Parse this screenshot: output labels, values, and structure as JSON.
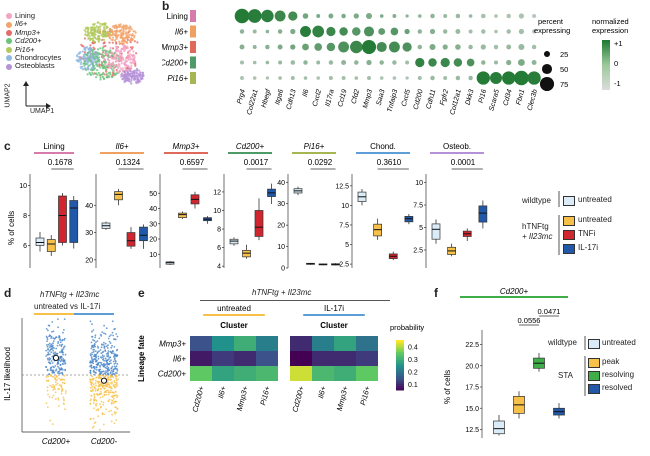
{
  "figure": {
    "panel_labels": [
      "b",
      "c",
      "d",
      "e",
      "f"
    ]
  },
  "panel_a": {
    "legend": [
      "Lining",
      "Il6+",
      "Mmp3+",
      "Cd200+",
      "Pi16+",
      "Chondrocytes",
      "Osteoblasts"
    ],
    "colors": [
      "#f4a3c3",
      "#f2a56b",
      "#e56a6a",
      "#6ac47c",
      "#b2c95d",
      "#8fb9e0",
      "#b592d8"
    ],
    "x_axis": "UMAP1",
    "y_axis": "UMAP2"
  },
  "chart_data": [
    {
      "type": "dotplot",
      "panel": "b",
      "rows": [
        "Lining",
        "Il6+",
        "Mmp3+",
        "Cd200+",
        "Pi16+"
      ],
      "row_colors": [
        "#d67bab",
        "#f0a061",
        "#e06a5a",
        "#4e9b68",
        "#a7b653"
      ],
      "genes": [
        "Prg4",
        "Col22a1",
        "Hbegf",
        "Itga6",
        "Cdh13",
        "Il6",
        "Cxcl2",
        "Il17ra",
        "Ccl19",
        "Cfd2",
        "Mmp3",
        "Saa3",
        "Tnfaip3",
        "Cxcl5",
        "Cd200",
        "Cdh11",
        "Fgfr2",
        "Col12a1",
        "Dkk3",
        "Pi16",
        "Scara5",
        "Cd34",
        "Fbn1",
        "Clec3b"
      ],
      "size_legend_title": "percent expressing",
      "size_legend": [
        25,
        50,
        75
      ],
      "color_legend_title": "normalized expression",
      "color_legend": [
        "+1",
        "0",
        "-1"
      ],
      "dots": [
        [
          [
            78,
            0.95
          ],
          [
            72,
            0.9
          ],
          [
            65,
            0.85
          ],
          [
            55,
            0.7
          ],
          [
            45,
            0.6
          ],
          [
            22,
            0.1
          ],
          [
            12,
            0
          ],
          [
            18,
            0
          ],
          [
            15,
            0
          ],
          [
            20,
            0
          ],
          [
            25,
            0
          ],
          [
            10,
            0
          ],
          [
            12,
            -0.1
          ],
          [
            8,
            -0.2
          ],
          [
            10,
            -0.2
          ],
          [
            15,
            -0.2
          ],
          [
            12,
            -0.3
          ],
          [
            15,
            -0.3
          ],
          [
            10,
            -0.3
          ],
          [
            15,
            -0.4
          ],
          [
            10,
            -0.5
          ],
          [
            15,
            -0.5
          ],
          [
            20,
            -0.5
          ],
          [
            12,
            -0.6
          ]
        ],
        [
          [
            15,
            -0.2
          ],
          [
            12,
            -0.3
          ],
          [
            10,
            -0.2
          ],
          [
            15,
            -0.1
          ],
          [
            20,
            0
          ],
          [
            55,
            0.9
          ],
          [
            60,
            0.8
          ],
          [
            45,
            0.7
          ],
          [
            40,
            0.6
          ],
          [
            40,
            0.4
          ],
          [
            50,
            0.5
          ],
          [
            30,
            0.3
          ],
          [
            35,
            0.4
          ],
          [
            20,
            0.2
          ],
          [
            15,
            -0.2
          ],
          [
            20,
            -0.1
          ],
          [
            15,
            -0.3
          ],
          [
            18,
            -0.3
          ],
          [
            12,
            -0.4
          ],
          [
            15,
            -0.4
          ],
          [
            10,
            -0.5
          ],
          [
            15,
            -0.4
          ],
          [
            20,
            -0.4
          ],
          [
            12,
            -0.5
          ]
        ],
        [
          [
            18,
            -0.1
          ],
          [
            12,
            -0.2
          ],
          [
            15,
            -0.1
          ],
          [
            18,
            0
          ],
          [
            20,
            0.1
          ],
          [
            30,
            0.2
          ],
          [
            35,
            0.3
          ],
          [
            40,
            0.4
          ],
          [
            55,
            0.5
          ],
          [
            65,
            0.7
          ],
          [
            75,
            0.95
          ],
          [
            50,
            0.6
          ],
          [
            55,
            0.6
          ],
          [
            45,
            0.5
          ],
          [
            15,
            -0.2
          ],
          [
            25,
            0
          ],
          [
            20,
            -0.1
          ],
          [
            22,
            -0.1
          ],
          [
            15,
            -0.3
          ],
          [
            20,
            -0.3
          ],
          [
            15,
            -0.4
          ],
          [
            18,
            -0.3
          ],
          [
            25,
            -0.3
          ],
          [
            15,
            -0.4
          ]
        ],
        [
          [
            12,
            -0.4
          ],
          [
            10,
            -0.4
          ],
          [
            10,
            -0.3
          ],
          [
            12,
            -0.3
          ],
          [
            15,
            -0.3
          ],
          [
            15,
            -0.2
          ],
          [
            12,
            -0.3
          ],
          [
            15,
            -0.3
          ],
          [
            18,
            -0.2
          ],
          [
            15,
            -0.2
          ],
          [
            20,
            -0.1
          ],
          [
            15,
            -0.2
          ],
          [
            15,
            -0.3
          ],
          [
            12,
            -0.4
          ],
          [
            45,
            0.8
          ],
          [
            40,
            0.7
          ],
          [
            45,
            0.7
          ],
          [
            40,
            0.6
          ],
          [
            35,
            0.5
          ],
          [
            15,
            -0.2
          ],
          [
            12,
            -0.3
          ],
          [
            20,
            -0.1
          ],
          [
            30,
            0
          ],
          [
            18,
            -0.2
          ]
        ],
        [
          [
            12,
            -0.5
          ],
          [
            10,
            -0.5
          ],
          [
            8,
            -0.5
          ],
          [
            10,
            -0.4
          ],
          [
            12,
            -0.4
          ],
          [
            10,
            -0.4
          ],
          [
            10,
            -0.5
          ],
          [
            12,
            -0.4
          ],
          [
            12,
            -0.4
          ],
          [
            10,
            -0.4
          ],
          [
            12,
            -0.4
          ],
          [
            10,
            -0.5
          ],
          [
            10,
            -0.5
          ],
          [
            8,
            -0.5
          ],
          [
            12,
            -0.4
          ],
          [
            15,
            -0.3
          ],
          [
            12,
            -0.4
          ],
          [
            15,
            -0.3
          ],
          [
            15,
            -0.3
          ],
          [
            70,
            0.95
          ],
          [
            62,
            0.9
          ],
          [
            70,
            0.95
          ],
          [
            78,
            0.95
          ],
          [
            70,
            0.9
          ]
        ]
      ]
    },
    {
      "type": "boxplot",
      "panel": "c",
      "ylabel": "% of cells",
      "groups": [
        "untreated (wildtype)",
        "untreated (hTNFtg)",
        "TNFi",
        "IL-17i"
      ],
      "group_colors": [
        "#d9ecf7",
        "#f6c049",
        "#d0262f",
        "#2159a8"
      ],
      "subplots": [
        {
          "title": "Lining",
          "color": "#d67bab",
          "p": "0.1678",
          "ylim": [
            4.5,
            10.5
          ],
          "ticks": [
            6,
            8,
            10
          ],
          "boxes": [
            [
              5.6,
              6.0,
              6.2,
              6.5,
              6.9
            ],
            [
              5.3,
              5.6,
              6.1,
              6.4,
              6.7
            ],
            [
              6.0,
              6.2,
              8.0,
              9.3,
              9.5
            ],
            [
              5.8,
              6.2,
              8.5,
              9.0,
              9.3
            ]
          ]
        },
        {
          "title": "Il6+",
          "color": "#f0a061",
          "p": "0.1324",
          "ylim": [
            17,
            50
          ],
          "ticks": [
            20,
            30,
            40
          ],
          "boxes": [
            [
              31,
              31.5,
              32.5,
              33.5,
              34
            ],
            [
              40,
              42,
              44,
              45,
              46
            ],
            [
              24,
              25,
              27,
              30,
              32
            ],
            [
              24,
              27,
              29,
              32,
              33
            ]
          ]
        },
        {
          "title": "Mmp3+",
          "color": "#e06a5a",
          "p": "0.6597",
          "ylim": [
            1,
            60
          ],
          "ticks": [
            10,
            20,
            30,
            40,
            50
          ],
          "boxes": [
            [
              3,
              3.5,
              4.5,
              5,
              5.5
            ],
            [
              33,
              34,
              36,
              37,
              38
            ],
            [
              40,
              43,
              46,
              49,
              51
            ],
            [
              30,
              32,
              33,
              34,
              35
            ]
          ]
        },
        {
          "title": "Cd200+",
          "color": "#4e9b68",
          "p": "0.0017",
          "ylim": [
            3.8,
            13.5
          ],
          "ticks": [
            4,
            6,
            8,
            10,
            12
          ],
          "boxes": [
            [
              6.2,
              6.4,
              6.7,
              6.9,
              7.1
            ],
            [
              4.8,
              5.0,
              5.4,
              5.7,
              6.3
            ],
            [
              6.8,
              7.2,
              8.2,
              10.0,
              11.3
            ],
            [
              10.7,
              11.5,
              11.9,
              12.3,
              12.9
            ]
          ]
        },
        {
          "title": "Pi16+",
          "color": "#a7b653",
          "p": "0.0292",
          "ylim": [
            0,
            42
          ],
          "ticks": [
            0,
            10,
            20,
            30,
            40
          ],
          "boxes": [
            [
              34,
              35,
              36,
              37,
              38
            ],
            [
              1.5,
              1.7,
              2.0,
              2.2,
              2.4
            ],
            [
              1.3,
              1.5,
              1.7,
              1.9,
              2.1
            ],
            [
              1.2,
              1.4,
              1.6,
              2.0,
              2.3
            ]
          ]
        },
        {
          "title": "Chond.",
          "color": "#5d9ed6",
          "p": "0.3610",
          "ylim": [
            2,
            13.5
          ],
          "ticks": [
            2.5,
            5.0,
            7.5,
            10.0,
            12.5
          ],
          "boxes": [
            [
              10.0,
              10.5,
              11.1,
              11.7,
              12.1
            ],
            [
              5.6,
              6.1,
              6.9,
              7.6,
              8.3
            ],
            [
              3.0,
              3.2,
              3.5,
              3.8,
              4.1
            ],
            [
              7.6,
              7.9,
              8.3,
              8.6,
              8.9
            ]
          ]
        },
        {
          "title": "Osteob.",
          "color": "#b592d8",
          "p": "0.0001",
          "ylim": [
            0.5,
            10.5
          ],
          "ticks": [
            2.5,
            5.0,
            7.5,
            10.0
          ],
          "boxes": [
            [
              3.2,
              3.7,
              4.8,
              5.4,
              5.9
            ],
            [
              1.8,
              2.0,
              2.4,
              2.8,
              3.2
            ],
            [
              3.5,
              4.0,
              4.3,
              4.6,
              4.9
            ],
            [
              4.9,
              5.6,
              6.6,
              7.4,
              8.0
            ]
          ]
        }
      ]
    },
    {
      "type": "scatter",
      "panel": "d",
      "categories": [
        "Cd200+",
        "Cd200-"
      ],
      "ylabel": "IL-17 likelihood",
      "medians": [
        0.65,
        0.45
      ],
      "threshold": 0.5
    },
    {
      "type": "heatmap",
      "panel": "e",
      "row_label": "Lineage fate",
      "rows": [
        "Mmp3+",
        "Il6+",
        "Cd200+"
      ],
      "cols": [
        "Cd200+",
        "Il6+",
        "Mmp3+",
        "Pi16+"
      ],
      "column_axis": "Cluster",
      "legend_title": "probability",
      "legend_ticks": [
        0.1,
        0.2,
        0.3,
        0.4
      ],
      "matrices": [
        {
          "title": "untreated",
          "values": [
            [
              0.15,
              0.25,
              0.3,
              0.22
            ],
            [
              0.08,
              0.12,
              0.1,
              0.15
            ],
            [
              0.35,
              0.28,
              0.3,
              0.32
            ]
          ]
        },
        {
          "title": "IL-17i",
          "values": [
            [
              0.1,
              0.22,
              0.28,
              0.2
            ],
            [
              0.05,
              0.1,
              0.1,
              0.12
            ],
            [
              0.42,
              0.32,
              0.3,
              0.35
            ]
          ]
        }
      ]
    },
    {
      "type": "boxplot",
      "panel": "f",
      "title": "Cd200+",
      "ylabel": "% of cells",
      "ylim": [
        11.5,
        23.5
      ],
      "ticks": [
        12.5,
        15.0,
        17.5,
        20.0,
        22.5
      ],
      "p_values": [
        {
          "label": "0.0556",
          "from": 1,
          "to": 2
        },
        {
          "label": "0.0471",
          "from": 2,
          "to": 3
        }
      ],
      "boxes": [
        {
          "name": "untreated",
          "color": "#d9ecf7",
          "q": [
            11.8,
            12.0,
            12.6,
            13.5,
            14.2
          ]
        },
        {
          "name": "peak",
          "color": "#f6c049",
          "q": [
            13.8,
            14.4,
            15.4,
            16.4,
            17.0
          ]
        },
        {
          "name": "resolving",
          "color": "#3fae49",
          "q": [
            19.3,
            19.7,
            20.3,
            20.9,
            21.5
          ]
        },
        {
          "name": "resolved",
          "color": "#2159a8",
          "q": [
            13.8,
            14.2,
            14.6,
            15.0,
            15.6
          ]
        }
      ]
    }
  ],
  "legend_c": {
    "wildtype": "wildtype",
    "untreated": "untreated",
    "hTNFtg": "hTNFtg",
    "il23": "+ Il23mc",
    "tnfi": "TNFi",
    "il17i": "IL-17i"
  },
  "panel_d": {
    "header": "hTNFtg + Il23mc",
    "contrast": "untreated vs IL-17i"
  },
  "panel_e": {
    "header": "hTNFtg + Il23mc"
  },
  "legend_f": {
    "wildtype": "wildtype",
    "untreated": "untreated",
    "sta": "STA",
    "peak": "peak",
    "resolving": "resolving",
    "resolved": "resolved"
  },
  "colors": {
    "green_bar": "#3fae49",
    "gray": "#999999"
  }
}
